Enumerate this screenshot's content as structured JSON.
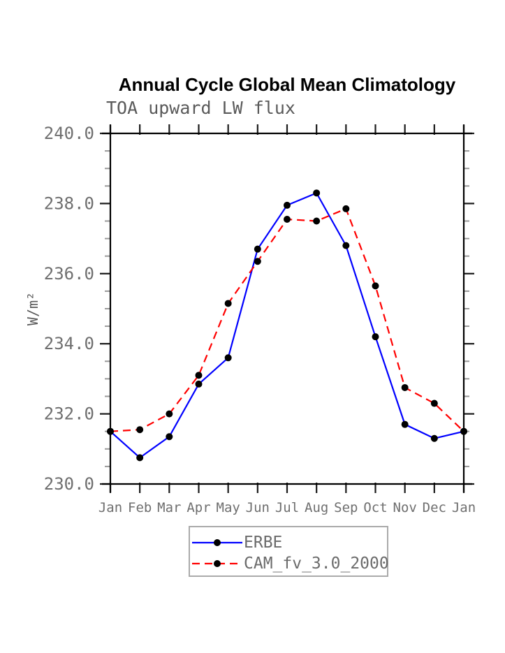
{
  "header": {
    "title": "Annual Cycle Global Mean Climatology",
    "subtitle": "TOA upward LW flux"
  },
  "colors": {
    "axis": "#000000",
    "major_tick": "#1a1a1a",
    "minor_tick": "#999999",
    "tick_label_text": "#6f6f6f",
    "marker": "#000000",
    "erbe_line": "#0000ff",
    "cam_line": "#ff0000"
  },
  "legend": {
    "items": [
      {
        "label": "ERBE",
        "color": "#0000ff",
        "style": "solid",
        "marker": "filled-circle"
      },
      {
        "label": "CAM_fv_3.0_2000",
        "color": "#ff0000",
        "style": "dashed",
        "marker": "filled-circle"
      }
    ]
  },
  "chart_data": {
    "type": "line",
    "title": "Annual Cycle Global Mean Climatology",
    "subtitle": "TOA upward LW flux",
    "xlabel": "",
    "ylabel": "W/m²",
    "ylim": [
      230.0,
      240.0
    ],
    "grid": false,
    "legend_position": "bottom",
    "categories": [
      "Jan",
      "Feb",
      "Mar",
      "Apr",
      "May",
      "Jun",
      "Jul",
      "Aug",
      "Sep",
      "Oct",
      "Nov",
      "Dec",
      "Jan"
    ],
    "y_ticks": [
      {
        "value": 240.0,
        "label": "240.0"
      },
      {
        "value": 238.0,
        "label": "238.0"
      },
      {
        "value": 236.0,
        "label": "236.0"
      },
      {
        "value": 234.0,
        "label": "234.0"
      },
      {
        "value": 232.0,
        "label": "232.0"
      },
      {
        "value": 230.0,
        "label": "230.0"
      }
    ],
    "y_minor_step": 0.5,
    "series": [
      {
        "name": "ERBE",
        "color": "#0000ff",
        "line_style": "solid",
        "marker": "filled-circle",
        "marker_color": "#000000",
        "values": [
          231.5,
          230.75,
          231.35,
          232.85,
          233.6,
          236.7,
          237.95,
          238.3,
          236.8,
          234.2,
          231.7,
          231.3,
          231.5
        ]
      },
      {
        "name": "CAM_fv_3.0_2000",
        "color": "#ff0000",
        "line_style": "dashed",
        "marker": "filled-circle",
        "marker_color": "#000000",
        "values": [
          231.5,
          231.55,
          232.0,
          233.1,
          235.15,
          236.35,
          237.55,
          237.5,
          237.85,
          235.65,
          232.75,
          232.3,
          231.5
        ]
      }
    ]
  }
}
